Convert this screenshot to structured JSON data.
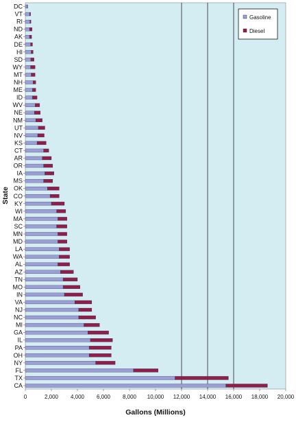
{
  "chart_data": {
    "type": "bar",
    "orientation": "horizontal",
    "stacked": true,
    "xlabel": "Gallons (Millions)",
    "ylabel": "State",
    "xlim": [
      0,
      20000
    ],
    "x_ticks": [
      0,
      2000,
      4000,
      6000,
      8000,
      10000,
      12000,
      14000,
      16000,
      18000,
      20000
    ],
    "x_tick_labels": [
      "0",
      "2,000",
      "4,000",
      "6,000",
      "8,000",
      "10,000",
      "12,000",
      "14,000",
      "16,000",
      "18,000",
      "20,000"
    ],
    "reference_lines": [
      12000,
      14000,
      16000
    ],
    "grid": false,
    "legend_position": "top-right",
    "plot_background": "#d3edf3",
    "categories": [
      "DC",
      "VT",
      "RI",
      "ND",
      "AK",
      "DE",
      "HI",
      "SD",
      "WY",
      "MT",
      "NH",
      "ME",
      "ID",
      "WV",
      "NE",
      "NM",
      "UT",
      "NV",
      "KS",
      "CT",
      "AR",
      "OR",
      "IA",
      "MS",
      "OK",
      "CO",
      "KY",
      "WI",
      "MA",
      "SC",
      "MN",
      "MD",
      "LA",
      "WA",
      "AL",
      "AZ",
      "TN",
      "MO",
      "IN",
      "VA",
      "NJ",
      "NC",
      "MI",
      "GA",
      "IL",
      "PA",
      "OH",
      "NY",
      "FL",
      "TX",
      "CA"
    ],
    "series": [
      {
        "name": "Gasoline",
        "color": "#9b9fd6",
        "values": [
          150,
          330,
          350,
          320,
          320,
          400,
          450,
          420,
          400,
          450,
          600,
          550,
          550,
          750,
          700,
          800,
          1000,
          950,
          900,
          1400,
          1300,
          1400,
          1500,
          1400,
          1700,
          1900,
          2000,
          2400,
          2500,
          2400,
          2500,
          2500,
          2600,
          2600,
          2500,
          2700,
          2900,
          2900,
          3000,
          3800,
          4100,
          4100,
          4500,
          4800,
          5000,
          4900,
          4900,
          5400,
          8300,
          11500,
          15400
        ]
      },
      {
        "name": "Diesel",
        "color": "#8e1f4a",
        "values": [
          30,
          70,
          80,
          200,
          160,
          150,
          150,
          250,
          350,
          300,
          200,
          250,
          350,
          350,
          450,
          500,
          500,
          500,
          700,
          400,
          700,
          700,
          700,
          700,
          900,
          700,
          1000,
          700,
          700,
          800,
          700,
          700,
          800,
          800,
          900,
          1000,
          1100,
          1300,
          1400,
          1300,
          1000,
          1300,
          1200,
          1600,
          1700,
          1700,
          1700,
          1500,
          1900,
          4100,
          3200
        ]
      }
    ]
  }
}
